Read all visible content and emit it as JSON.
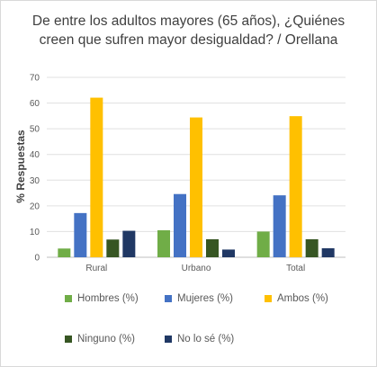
{
  "chart_data": {
    "type": "bar",
    "title_lines": [
      "De entre los adultos mayores (65 años), ¿Quiénes",
      "creen que sufren mayor desigualdad? / Orellana"
    ],
    "ylabel": "% Respuestas",
    "xlabel": "",
    "ylim": [
      0,
      70
    ],
    "yticks": [
      "0",
      "10",
      "20",
      "30",
      "40",
      "50",
      "60",
      "70"
    ],
    "categories": [
      "Rural",
      "Urbano",
      "Total"
    ],
    "series": [
      {
        "name": "Hombres (%)",
        "color": "#70ad47",
        "values": [
          3.4,
          10.5,
          10.0
        ]
      },
      {
        "name": "Mujeres (%)",
        "color": "#4472c4",
        "values": [
          17.2,
          24.6,
          24.1
        ]
      },
      {
        "name": "Ambos (%)",
        "color": "#ffc000",
        "values": [
          62.1,
          54.4,
          54.9
        ]
      },
      {
        "name": "Ninguno (%)",
        "color": "#375623",
        "values": [
          6.9,
          7.0,
          7.0
        ]
      },
      {
        "name": "No lo sé (%)",
        "color": "#203864",
        "values": [
          10.3,
          3.0,
          3.5
        ]
      }
    ],
    "grid": true,
    "legend_position": "bottom"
  }
}
